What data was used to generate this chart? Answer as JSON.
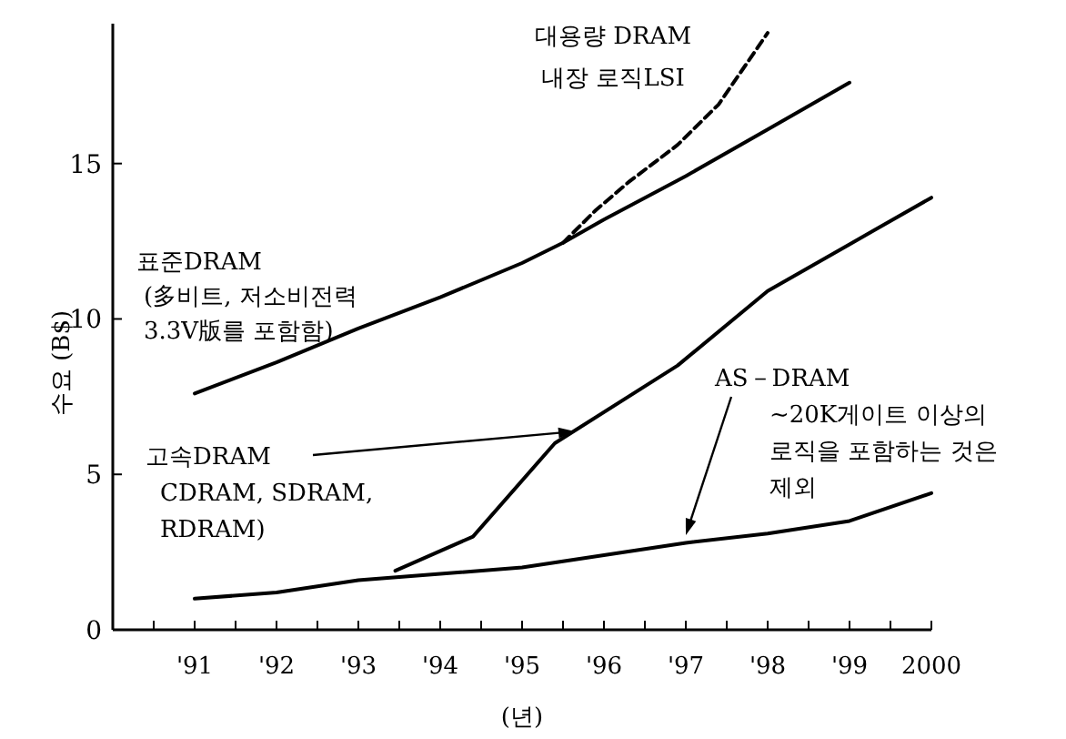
{
  "chart_data": {
    "type": "line",
    "xlabel": "(년)",
    "ylabel": "수요 (B$)",
    "xlim": [
      1990,
      2000
    ],
    "ylim": [
      0,
      19.5
    ],
    "xticks": [
      {
        "value": 1990.5,
        "label": null
      },
      {
        "value": 1991,
        "label": "'91"
      },
      {
        "value": 1991.5,
        "label": null
      },
      {
        "value": 1992,
        "label": "'92"
      },
      {
        "value": 1992.5,
        "label": null
      },
      {
        "value": 1993,
        "label": "'93"
      },
      {
        "value": 1993.5,
        "label": null
      },
      {
        "value": 1994,
        "label": "'94"
      },
      {
        "value": 1994.5,
        "label": null
      },
      {
        "value": 1995,
        "label": "'95"
      },
      {
        "value": 1995.5,
        "label": null
      },
      {
        "value": 1996,
        "label": "'96"
      },
      {
        "value": 1996.5,
        "label": null
      },
      {
        "value": 1997,
        "label": "'97"
      },
      {
        "value": 1997.5,
        "label": null
      },
      {
        "value": 1998,
        "label": "'98"
      },
      {
        "value": 1998.5,
        "label": null
      },
      {
        "value": 1999,
        "label": "'99"
      },
      {
        "value": 1999.5,
        "label": null
      },
      2000
    ],
    "yticks": [
      0,
      5,
      10,
      15
    ],
    "grid": false,
    "series": [
      {
        "name": "대용량 DRAM\n내장 로직LSI",
        "color": "#000000",
        "line_style": "dashed",
        "x": [
          1995.5,
          1995.9,
          1996.3,
          1996.9,
          1997.4,
          1998.0
        ],
        "values": [
          12.45,
          13.5,
          14.4,
          15.6,
          16.9,
          19.2
        ]
      },
      {
        "name": "표준DRAM\n(多비트, 저소비전력\n3.3V版를 포함함)",
        "color": "#000000",
        "line_style": "solid",
        "x": [
          1991,
          1992,
          1993,
          1994,
          1995,
          1995.5,
          1996,
          1997,
          1998,
          1999
        ],
        "values": [
          7.6,
          8.6,
          9.7,
          10.7,
          11.8,
          12.45,
          13.2,
          14.6,
          16.1,
          17.6
        ]
      },
      {
        "name": "고속DRAM\nCDRAM, SDRAM,\nRDRAM)",
        "color": "#000000",
        "line_style": "solid",
        "x": [
          1993.45,
          1994.4,
          1995.4,
          1996.9,
          1998,
          1999,
          2000
        ],
        "values": [
          1.9,
          3.0,
          6.0,
          8.5,
          10.9,
          12.4,
          13.9
        ]
      },
      {
        "name": "AS－DRAM\n~20K게이트 이상의\n로직을 포함하는 것은\n제외",
        "color": "#000000",
        "line_style": "solid",
        "x": [
          1991,
          1992,
          1993,
          1994,
          1995,
          1996,
          1997,
          1998,
          1999,
          2000
        ],
        "values": [
          1.0,
          1.2,
          1.6,
          1.8,
          2.0,
          2.4,
          2.8,
          3.1,
          3.5,
          4.4
        ]
      }
    ]
  }
}
